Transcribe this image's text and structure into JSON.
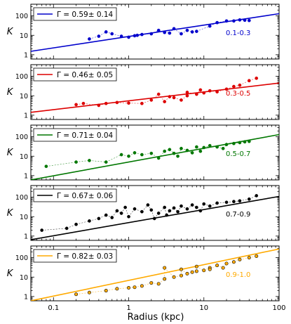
{
  "chart_data": [
    {
      "type": "scatter",
      "ylabel": "K",
      "xscale": "log",
      "yscale": "log",
      "xlim": [
        0.05,
        100
      ],
      "ylim": [
        0.6,
        400
      ],
      "legend": "Γ =  0.59± 0.14",
      "legend_location": "top-left",
      "annotation": "0.1-0.3",
      "color": "#0000cc",
      "fit": {
        "slope": 0.59,
        "x": [
          0.05,
          100
        ],
        "y": [
          1.5,
          130
        ]
      },
      "points": [
        [
          0.3,
          6.5
        ],
        [
          0.4,
          9
        ],
        [
          0.5,
          15
        ],
        [
          0.6,
          12
        ],
        [
          0.8,
          9
        ],
        [
          1.0,
          8
        ],
        [
          1.2,
          9.5
        ],
        [
          1.3,
          10
        ],
        [
          1.5,
          11
        ],
        [
          2.0,
          12
        ],
        [
          2.5,
          18
        ],
        [
          3,
          14
        ],
        [
          3.5,
          13
        ],
        [
          4,
          22
        ],
        [
          5,
          12
        ],
        [
          6,
          18
        ],
        [
          7,
          15
        ],
        [
          8,
          16
        ],
        [
          12,
          30
        ],
        [
          15,
          45
        ],
        [
          20,
          55
        ],
        [
          25,
          55
        ],
        [
          30,
          62
        ],
        [
          35,
          60
        ],
        [
          40,
          58
        ]
      ]
    },
    {
      "type": "scatter",
      "ylabel": "K",
      "xscale": "log",
      "yscale": "log",
      "xlim": [
        0.05,
        100
      ],
      "ylim": [
        0.6,
        400
      ],
      "legend": "Γ =  0.46± 0.05",
      "legend_location": "top-left",
      "annotation": "0.3-0.5",
      "color": "#dd0000",
      "fit": {
        "slope": 0.46,
        "x": [
          0.05,
          100
        ],
        "y": [
          1.4,
          45
        ]
      },
      "points": [
        [
          0.2,
          3.5
        ],
        [
          0.25,
          4
        ],
        [
          0.4,
          3.2
        ],
        [
          0.5,
          4
        ],
        [
          0.7,
          4.5
        ],
        [
          1.0,
          4.2
        ],
        [
          1.5,
          4
        ],
        [
          2,
          6
        ],
        [
          3,
          5
        ],
        [
          4,
          8
        ],
        [
          5,
          6
        ],
        [
          6,
          10
        ],
        [
          8,
          12
        ],
        [
          10,
          14
        ],
        [
          12,
          18
        ],
        [
          15,
          16
        ],
        [
          20,
          22
        ],
        [
          25,
          30
        ],
        [
          30,
          35
        ],
        [
          40,
          60
        ],
        [
          50,
          80
        ],
        [
          2.5,
          12
        ],
        [
          3.5,
          9
        ],
        [
          6,
          15
        ],
        [
          9,
          20
        ]
      ]
    },
    {
      "type": "scatter",
      "ylabel": "K",
      "xscale": "log",
      "yscale": "log",
      "xlim": [
        0.05,
        100
      ],
      "ylim": [
        0.6,
        400
      ],
      "legend": "Γ =  0.71± 0.04",
      "legend_location": "top-left",
      "annotation": "0.5-0.7",
      "color": "#007700",
      "fit": {
        "slope": 0.71,
        "x": [
          0.05,
          100
        ],
        "y": [
          0.6,
          130
        ]
      },
      "points": [
        [
          0.08,
          3
        ],
        [
          0.2,
          5
        ],
        [
          0.3,
          6
        ],
        [
          0.5,
          5
        ],
        [
          0.8,
          12
        ],
        [
          1.0,
          10
        ],
        [
          1.2,
          15
        ],
        [
          1.5,
          12
        ],
        [
          2,
          14
        ],
        [
          2.5,
          8
        ],
        [
          3,
          18
        ],
        [
          4,
          14
        ],
        [
          5,
          25
        ],
        [
          6,
          20
        ],
        [
          7,
          15
        ],
        [
          8,
          30
        ],
        [
          10,
          28
        ],
        [
          12,
          35
        ],
        [
          15,
          30
        ],
        [
          20,
          40
        ],
        [
          25,
          45
        ],
        [
          30,
          50
        ],
        [
          35,
          55
        ],
        [
          40,
          58
        ],
        [
          3.5,
          22
        ],
        [
          4.5,
          10
        ],
        [
          9,
          18
        ],
        [
          18,
          25
        ]
      ]
    },
    {
      "type": "scatter",
      "ylabel": "K",
      "xscale": "log",
      "yscale": "log",
      "xlim": [
        0.05,
        100
      ],
      "ylim": [
        0.6,
        400
      ],
      "legend": "Γ =  0.67± 0.06",
      "legend_location": "top-left",
      "annotation": "0.7-0.9",
      "color": "#000000",
      "fit": {
        "slope": 0.67,
        "x": [
          0.05,
          100
        ],
        "y": [
          0.65,
          110
        ]
      },
      "points": [
        [
          0.07,
          2
        ],
        [
          0.15,
          2.5
        ],
        [
          0.2,
          4
        ],
        [
          0.3,
          6
        ],
        [
          0.4,
          8
        ],
        [
          0.5,
          12
        ],
        [
          0.6,
          9
        ],
        [
          0.7,
          20
        ],
        [
          0.8,
          15
        ],
        [
          1.0,
          10
        ],
        [
          1.2,
          25
        ],
        [
          1.5,
          18
        ],
        [
          2,
          22
        ],
        [
          2.5,
          15
        ],
        [
          3,
          30
        ],
        [
          3.5,
          20
        ],
        [
          4,
          28
        ],
        [
          5,
          35
        ],
        [
          6,
          25
        ],
        [
          7,
          40
        ],
        [
          8,
          30
        ],
        [
          10,
          45
        ],
        [
          12,
          35
        ],
        [
          15,
          50
        ],
        [
          20,
          55
        ],
        [
          25,
          60
        ],
        [
          30,
          65
        ],
        [
          40,
          80
        ],
        [
          50,
          120
        ],
        [
          0.9,
          30
        ],
        [
          1.8,
          40
        ],
        [
          2.2,
          8
        ],
        [
          3.2,
          12
        ],
        [
          4.5,
          18
        ],
        [
          9,
          20
        ]
      ]
    },
    {
      "type": "scatter",
      "ylabel": "K",
      "xlabel": "Radius (kpc)",
      "xscale": "log",
      "yscale": "log",
      "xlim": [
        0.05,
        100
      ],
      "ylim": [
        0.6,
        400
      ],
      "legend": "Γ =  0.82± 0.03",
      "legend_location": "top-left",
      "annotation": "0.9-1.0",
      "color": "#ffaa00",
      "xticks": [
        "0.1",
        "1",
        "10",
        "100"
      ],
      "fit": {
        "slope": 0.82,
        "x": [
          0.05,
          100
        ],
        "y": [
          0.6,
          280
        ]
      },
      "points": [
        [
          0.2,
          1.3
        ],
        [
          0.3,
          1.6
        ],
        [
          0.5,
          2
        ],
        [
          0.7,
          2.5
        ],
        [
          1.0,
          2.8
        ],
        [
          1.2,
          3
        ],
        [
          1.5,
          3.5
        ],
        [
          2,
          5
        ],
        [
          2.5,
          4.5
        ],
        [
          3,
          8
        ],
        [
          4,
          10
        ],
        [
          5,
          12
        ],
        [
          6,
          15
        ],
        [
          7,
          18
        ],
        [
          8,
          20
        ],
        [
          10,
          22
        ],
        [
          12,
          30
        ],
        [
          15,
          40
        ],
        [
          20,
          50
        ],
        [
          25,
          60
        ],
        [
          30,
          80
        ],
        [
          40,
          100
        ],
        [
          50,
          120
        ],
        [
          3,
          30
        ],
        [
          5,
          25
        ],
        [
          8,
          35
        ],
        [
          12,
          25
        ],
        [
          18,
          30
        ]
      ]
    }
  ]
}
